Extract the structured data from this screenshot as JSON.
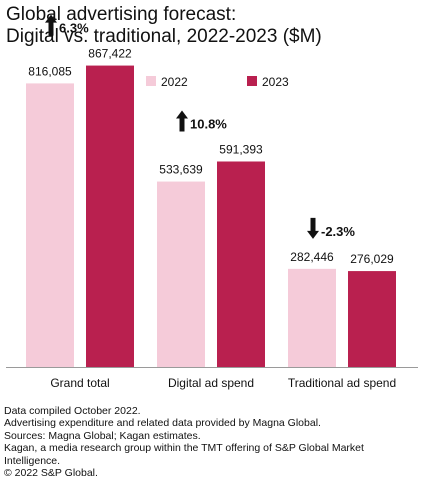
{
  "chart_data": {
    "type": "bar",
    "title": "Global advertising forecast:",
    "subtitle": "Digital vs. traditional, 2022-2023 ($M)",
    "categories": [
      "Grand total",
      "Digital ad spend",
      "Traditional ad spend"
    ],
    "series": [
      {
        "name": "2022",
        "color": "#f5cbd9",
        "values": [
          816085,
          533639,
          282446
        ],
        "labels": [
          "816,085",
          "533,639",
          "282,446"
        ]
      },
      {
        "name": "2023",
        "color": "#b9204f",
        "values": [
          867422,
          591393,
          276029
        ],
        "labels": [
          "867,422",
          "591,393",
          "276,029"
        ]
      }
    ],
    "annotations": [
      {
        "category": "Grand total",
        "text": "6.3%",
        "direction": "up"
      },
      {
        "category": "Digital ad spend",
        "text": "10.8%",
        "direction": "up"
      },
      {
        "category": "Traditional ad spend",
        "text": "-2.3%",
        "direction": "down"
      }
    ],
    "legend_position": "top",
    "grid": false,
    "ylim": [
      0,
      1000000
    ]
  },
  "footer": [
    "Data compiled October 2022.",
    "Advertising expenditure and related data provided by Magna Global.",
    "Sources: Magna Global; Kagan estimates.",
    "Kagan, a media research group within the TMT offering of S&P Global Market Intelligence.",
    "© 2022 S&P Global."
  ]
}
